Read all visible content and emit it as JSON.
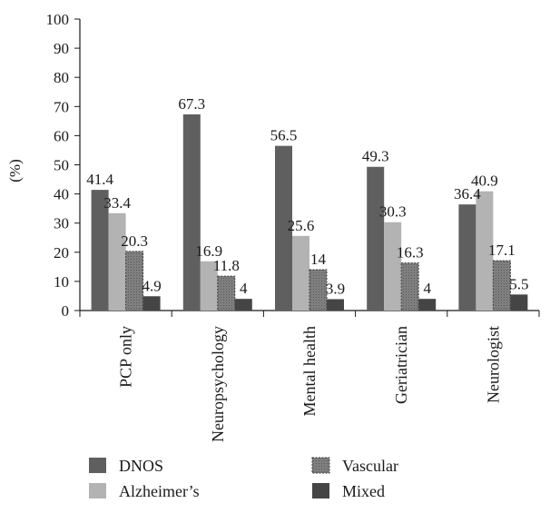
{
  "chart_data": {
    "type": "bar",
    "categories": [
      "PCP only",
      "Neuropsychology",
      "Mental health",
      "Geriatrician",
      "Neurologist"
    ],
    "series": [
      {
        "name": "DNOS",
        "values": [
          41.4,
          67.3,
          56.5,
          49.3,
          36.4
        ]
      },
      {
        "name": "Alzheimer's",
        "values": [
          33.4,
          16.9,
          25.6,
          30.3,
          40.9
        ]
      },
      {
        "name": "Vascular",
        "values": [
          20.3,
          11.8,
          14,
          16.3,
          17.1
        ]
      },
      {
        "name": "Mixed",
        "values": [
          4.9,
          4,
          3.9,
          4,
          5.5
        ]
      }
    ],
    "value_labels": [
      [
        "41.4",
        "67.3",
        "56.5",
        "49.3",
        "36.4"
      ],
      [
        "33.4",
        "16.9",
        "25.6",
        "30.3",
        "40.9"
      ],
      [
        "20.3",
        "11.8",
        "14",
        "16.3",
        "17.1"
      ],
      [
        "4.9",
        "4",
        "3.9",
        "4",
        "5.5"
      ]
    ],
    "legend_labels": [
      "DNOS",
      "Alzheimer’s",
      "Vascular",
      "Mixed"
    ],
    "ylabel": "(%)",
    "ylim": [
      0,
      100
    ],
    "yticks": [
      "0",
      "10",
      "20",
      "30",
      "40",
      "50",
      "60",
      "70",
      "80",
      "90",
      "100"
    ],
    "legend_position": "bottom",
    "grid": false,
    "colors": {
      "DNOS": "#5f5f5f",
      "Alzheimer's": "#b3b3b3",
      "Vascular": "#7d7d7d",
      "Mixed": "#454545",
      "axis": "#1a1a1a"
    }
  }
}
